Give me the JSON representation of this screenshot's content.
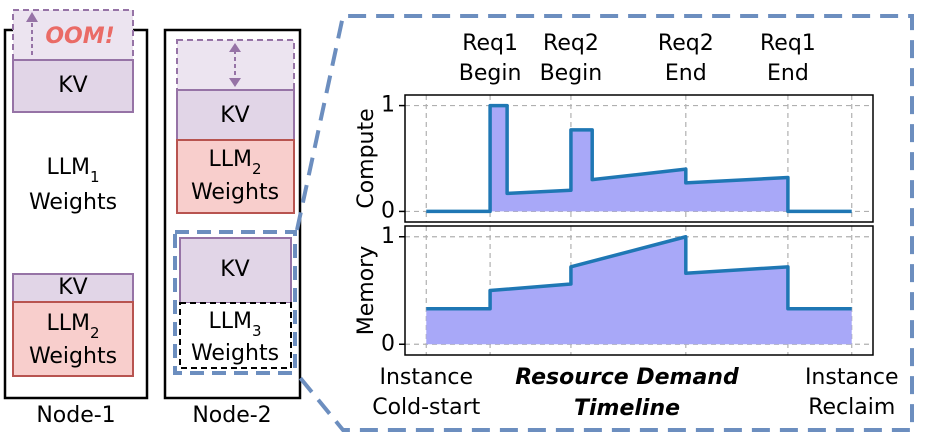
{
  "nodes": [
    {
      "label": "Node-1",
      "blocks": [
        {
          "text": "OOM!"
        },
        {
          "text": "KV"
        },
        {
          "base": "LLM",
          "subscript": "1",
          "line2": "Weights"
        },
        {
          "text": "KV"
        },
        {
          "base": "LLM",
          "subscript": "2",
          "line2": "Weights"
        }
      ]
    },
    {
      "label": "Node-2",
      "blocks": [
        {
          "text": "KV"
        },
        {
          "base": "LLM",
          "subscript": "2",
          "line2": "Weights"
        },
        {
          "text": "KV"
        },
        {
          "base": "LLM",
          "subscript": "3",
          "line2": "Weights"
        }
      ]
    }
  ],
  "chart_data": [
    {
      "type": "area",
      "ylabel": "Compute",
      "x": [
        0,
        15,
        15,
        19,
        19,
        34,
        34,
        39,
        39,
        61,
        61,
        85,
        85,
        100
      ],
      "values": [
        0,
        0,
        1,
        1,
        0.17,
        0.2,
        0.77,
        0.77,
        0.3,
        0.4,
        0.27,
        0.32,
        0,
        0
      ],
      "color": "#1f77b4",
      "fill": "#a8a8f8",
      "xlim": [
        -5,
        105
      ],
      "ylim": [
        -0.1,
        1.1
      ],
      "yticks": [
        0,
        1
      ],
      "grid": true,
      "xticks": [
        {
          "value": 15,
          "label": "Req1 Begin"
        },
        {
          "value": 34,
          "label": "Req2 Begin"
        },
        {
          "value": 61,
          "label": "Req2 End"
        },
        {
          "value": 85,
          "label": "Req1 End"
        }
      ]
    },
    {
      "type": "area",
      "ylabel": "Memory",
      "xlabel": "Resource Demand Timeline",
      "x": [
        0,
        15,
        15,
        34,
        34,
        61,
        61,
        85,
        85,
        100
      ],
      "values": [
        0.33,
        0.33,
        0.5,
        0.56,
        0.72,
        1,
        0.66,
        0.72,
        0.33,
        0.33
      ],
      "color": "#1f77b4",
      "fill": "#a8a8f8",
      "xlim": [
        -5,
        105
      ],
      "ylim": [
        -0.1,
        1.1
      ],
      "yticks": [
        0,
        1
      ],
      "grid": true,
      "xticks": [
        {
          "value": 0,
          "label": "Instance Cold-start"
        },
        {
          "value": 100,
          "label": "Instance Reclaim"
        }
      ]
    }
  ]
}
